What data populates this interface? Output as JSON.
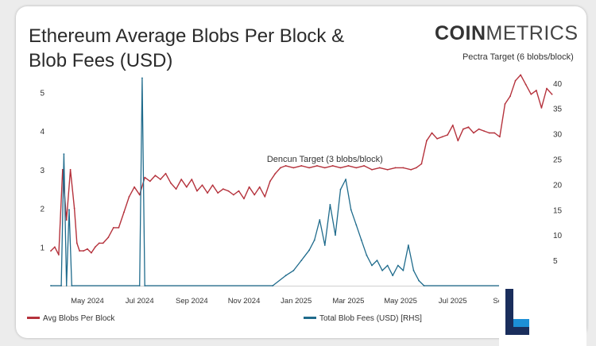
{
  "chart_data": {
    "type": "line",
    "title": "Ethereum Average Blobs Per Block & Blob Fees (USD)",
    "title_lines": [
      "Ethereum Average Blobs Per Block &",
      "Blob Fees (USD)"
    ],
    "brand": {
      "bold": "COIN",
      "light": "METRICS"
    },
    "x_ticks": [
      "May 2024",
      "Jul 2024",
      "Sep 2024",
      "Nov 2024",
      "Jan 2025",
      "Mar 2025",
      "May 2025",
      "Jul 2025",
      "Sep 20"
    ],
    "y_left_ticks": [
      1,
      2,
      3,
      4,
      5
    ],
    "y_right_ticks": [
      5,
      10,
      15,
      20,
      25,
      30,
      35,
      40
    ],
    "y_left_range": [
      0,
      5.5
    ],
    "y_right_range": [
      0,
      42
    ],
    "x_range_months": [
      0,
      19
    ],
    "annotations": [
      {
        "text": "Dencun Target (3 blobs/block)",
        "x": 10.5,
        "y": 3.2
      },
      {
        "text": "Pectra Target (6 blobs/block)",
        "x": 17.9,
        "y": 5.85
      }
    ],
    "series": [
      {
        "name": "Avg Blobs Per Block",
        "axis": "left",
        "color": "#b5323c",
        "points": [
          [
            0,
            0.9
          ],
          [
            0.15,
            1.0
          ],
          [
            0.3,
            0.8
          ],
          [
            0.45,
            3.0
          ],
          [
            0.6,
            1.7
          ],
          [
            0.75,
            3.0
          ],
          [
            0.9,
            2.0
          ],
          [
            1.0,
            1.1
          ],
          [
            1.1,
            0.9
          ],
          [
            1.25,
            0.9
          ],
          [
            1.4,
            0.95
          ],
          [
            1.55,
            0.85
          ],
          [
            1.7,
            1.0
          ],
          [
            1.85,
            1.1
          ],
          [
            2.0,
            1.1
          ],
          [
            2.2,
            1.25
          ],
          [
            2.4,
            1.5
          ],
          [
            2.6,
            1.5
          ],
          [
            2.8,
            1.9
          ],
          [
            3.0,
            2.3
          ],
          [
            3.2,
            2.55
          ],
          [
            3.4,
            2.35
          ],
          [
            3.6,
            2.8
          ],
          [
            3.8,
            2.7
          ],
          [
            4.0,
            2.85
          ],
          [
            4.2,
            2.75
          ],
          [
            4.4,
            2.9
          ],
          [
            4.6,
            2.65
          ],
          [
            4.8,
            2.5
          ],
          [
            5.0,
            2.75
          ],
          [
            5.2,
            2.55
          ],
          [
            5.4,
            2.75
          ],
          [
            5.6,
            2.45
          ],
          [
            5.8,
            2.6
          ],
          [
            6.0,
            2.4
          ],
          [
            6.2,
            2.6
          ],
          [
            6.4,
            2.4
          ],
          [
            6.6,
            2.5
          ],
          [
            6.8,
            2.45
          ],
          [
            7.0,
            2.35
          ],
          [
            7.2,
            2.45
          ],
          [
            7.4,
            2.25
          ],
          [
            7.6,
            2.55
          ],
          [
            7.8,
            2.35
          ],
          [
            8.0,
            2.55
          ],
          [
            8.2,
            2.3
          ],
          [
            8.4,
            2.7
          ],
          [
            8.6,
            2.9
          ],
          [
            8.8,
            3.05
          ],
          [
            9.0,
            3.1
          ],
          [
            9.3,
            3.05
          ],
          [
            9.6,
            3.1
          ],
          [
            9.9,
            3.05
          ],
          [
            10.2,
            3.1
          ],
          [
            10.5,
            3.05
          ],
          [
            10.8,
            3.1
          ],
          [
            11.1,
            3.05
          ],
          [
            11.4,
            3.1
          ],
          [
            11.7,
            3.05
          ],
          [
            12.0,
            3.1
          ],
          [
            12.3,
            3.0
          ],
          [
            12.6,
            3.05
          ],
          [
            12.9,
            3.0
          ],
          [
            13.2,
            3.05
          ],
          [
            13.5,
            3.05
          ],
          [
            13.8,
            3.0
          ],
          [
            14.0,
            3.05
          ],
          [
            14.2,
            3.15
          ],
          [
            14.4,
            3.75
          ],
          [
            14.6,
            3.95
          ],
          [
            14.8,
            3.8
          ],
          [
            15.0,
            3.85
          ],
          [
            15.2,
            3.9
          ],
          [
            15.4,
            4.15
          ],
          [
            15.6,
            3.75
          ],
          [
            15.8,
            4.05
          ],
          [
            16.0,
            4.1
          ],
          [
            16.2,
            3.95
          ],
          [
            16.4,
            4.05
          ],
          [
            16.6,
            4.0
          ],
          [
            16.8,
            3.95
          ],
          [
            17.0,
            3.95
          ],
          [
            17.2,
            3.85
          ],
          [
            17.4,
            4.7
          ],
          [
            17.6,
            4.9
          ],
          [
            17.8,
            5.3
          ],
          [
            18.0,
            5.45
          ],
          [
            18.2,
            5.2
          ],
          [
            18.4,
            4.95
          ],
          [
            18.6,
            5.05
          ],
          [
            18.8,
            4.6
          ],
          [
            19.0,
            5.1
          ],
          [
            19.2,
            4.95
          ]
        ]
      },
      {
        "name": "Total Blob Fees (USD) [RHS]",
        "axis": "right",
        "color": "#1f6b8c",
        "points": [
          [
            0,
            0
          ],
          [
            0.4,
            0
          ],
          [
            0.5,
            26
          ],
          [
            0.6,
            0
          ],
          [
            0.7,
            15
          ],
          [
            0.8,
            0
          ],
          [
            3.4,
            0
          ],
          [
            3.5,
            41
          ],
          [
            3.6,
            0
          ],
          [
            8.5,
            0
          ],
          [
            9.0,
            2
          ],
          [
            9.3,
            3
          ],
          [
            9.6,
            5
          ],
          [
            9.9,
            7
          ],
          [
            10.1,
            9
          ],
          [
            10.3,
            13
          ],
          [
            10.5,
            8
          ],
          [
            10.7,
            16
          ],
          [
            10.9,
            10
          ],
          [
            11.1,
            19
          ],
          [
            11.3,
            21
          ],
          [
            11.5,
            15
          ],
          [
            11.7,
            12
          ],
          [
            11.9,
            9
          ],
          [
            12.1,
            6
          ],
          [
            12.3,
            4
          ],
          [
            12.5,
            5
          ],
          [
            12.7,
            3
          ],
          [
            12.9,
            4
          ],
          [
            13.1,
            2
          ],
          [
            13.3,
            4
          ],
          [
            13.5,
            3
          ],
          [
            13.7,
            8
          ],
          [
            13.9,
            3
          ],
          [
            14.1,
            1
          ],
          [
            14.3,
            0
          ],
          [
            19.2,
            0
          ]
        ]
      }
    ],
    "legend": [
      "Avg Blobs Per Block",
      "Total Blob Fees (USD) [RHS]"
    ],
    "grid": false,
    "legend_position": "bottom"
  }
}
